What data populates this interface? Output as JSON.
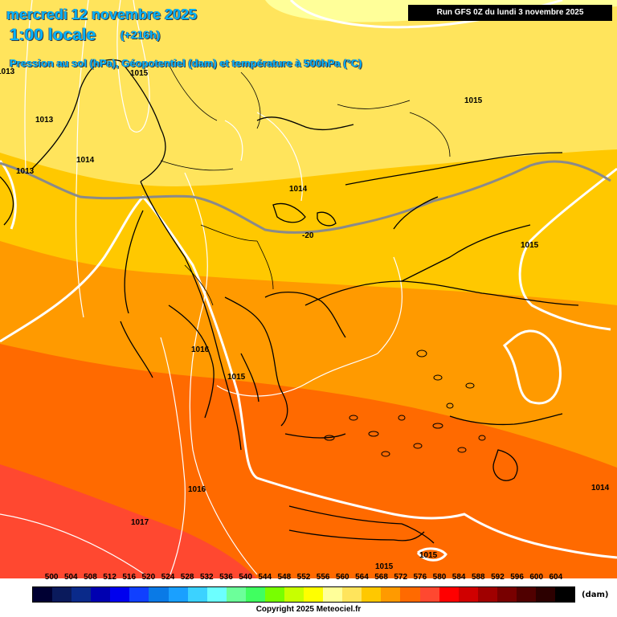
{
  "header": {
    "date": "mercredi 12 novembre 2025",
    "time": "1:00 locale",
    "step": "(+216h)",
    "description": "Pression au sol (hPa), Géopotentiel (dam) et température à 500hPa (°C)",
    "run": "Run GFS 0Z du lundi 3 novembre 2025"
  },
  "map": {
    "geopotential_bands": [
      {
        "level": 560,
        "color": "#ffff99"
      },
      {
        "level": 564,
        "color": "#ffe45c"
      },
      {
        "level": 568,
        "color": "#ffc800"
      },
      {
        "level": 572,
        "color": "#ff9a00"
      },
      {
        "level": 576,
        "color": "#ff6a00"
      },
      {
        "level": 580,
        "color": "#ff4830"
      }
    ],
    "isotherm_label": "-20",
    "pressure_labels": [
      "1013",
      "1015",
      "1013",
      "1014",
      "1013",
      "1014",
      "1015",
      "1015",
      "1016",
      "1015",
      "1016",
      "1017",
      "1014",
      "1015",
      "1015"
    ]
  },
  "legend": {
    "unit": "(dam)",
    "levels": [
      "500",
      "504",
      "508",
      "512",
      "516",
      "520",
      "524",
      "528",
      "532",
      "536",
      "540",
      "544",
      "548",
      "552",
      "556",
      "560",
      "564",
      "568",
      "572",
      "576",
      "580",
      "584",
      "588",
      "592",
      "596",
      "600",
      "604"
    ],
    "colors": [
      "#000033",
      "#0a1a5c",
      "#0a2a8a",
      "#0000b0",
      "#0000ee",
      "#1040ff",
      "#0a7ae6",
      "#1aa0ff",
      "#3cd2ff",
      "#6cffff",
      "#6cff9a",
      "#40ff60",
      "#78ff00",
      "#c8ff00",
      "#ffff00",
      "#ffff99",
      "#ffe45c",
      "#ffc800",
      "#ff9a00",
      "#ff6a00",
      "#ff4830",
      "#ff0000",
      "#d00000",
      "#a00000",
      "#780000",
      "#500000",
      "#2c0000",
      "#000000"
    ]
  },
  "footer": {
    "copyright": "Copyright 2025 Meteociel.fr"
  }
}
